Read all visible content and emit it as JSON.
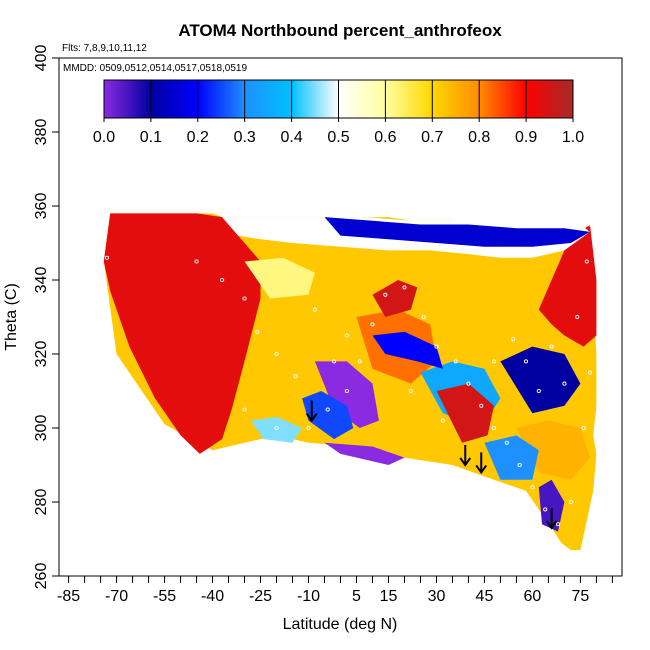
{
  "chart_data": {
    "type": "heatmap",
    "title": "ATOM4 Northbound percent_anthrofeox",
    "flights_label": "Flts: 7,8,9,10,11,12",
    "mmdd_label": "MMDD: 0509,0512,0514,0517,0518,0519",
    "xlabel": "Latitude (deg N)",
    "ylabel": "Theta (C)",
    "xlim": [
      -88,
      88
    ],
    "ylim": [
      260,
      400
    ],
    "x_ticks": [
      -85,
      -70,
      -55,
      -40,
      -25,
      -10,
      5,
      15,
      30,
      45,
      60,
      75
    ],
    "y_ticks": [
      260,
      280,
      300,
      320,
      340,
      360,
      380,
      400
    ],
    "colorbar": {
      "ticks": [
        "0.0",
        "0.1",
        "0.2",
        "0.3",
        "0.4",
        "0.5",
        "0.6",
        "0.7",
        "0.8",
        "0.9",
        "1.0"
      ],
      "range": [
        0,
        1
      ],
      "colors": [
        "#8a2be2",
        "#0000a0",
        "#0000ff",
        "#1e90ff",
        "#00bfff",
        "#ffffff",
        "#ffffa0",
        "#ffd700",
        "#ff8c00",
        "#ff0000",
        "#a52a2a"
      ]
    },
    "field_outline": {
      "lat": [
        -74,
        -72,
        -67,
        -60,
        -50,
        -45,
        -40,
        -37,
        -34,
        -27,
        -20,
        -13,
        -5,
        -2,
        3,
        8,
        15,
        22,
        28,
        35,
        40,
        46,
        50,
        56,
        60,
        63,
        66,
        70,
        75,
        78,
        80,
        80,
        79,
        80,
        79,
        77,
        75,
        72,
        69,
        66,
        58,
        48,
        35,
        20,
        5,
        -10,
        -20,
        -30,
        -40,
        -55,
        -70,
        -74
      ],
      "theta": [
        345,
        358,
        358,
        358,
        358,
        358,
        358,
        357,
        357,
        357,
        357,
        357,
        357,
        357,
        357,
        357,
        357,
        356,
        356,
        356,
        355,
        355,
        355,
        355,
        355,
        355,
        355,
        355,
        355,
        353,
        320,
        306,
        298,
        293,
        283,
        275,
        267,
        267,
        269,
        273,
        283,
        286,
        290,
        292,
        295,
        296,
        298,
        296,
        294,
        301,
        320,
        345
      ]
    },
    "regions": [
      {
        "value": 0.93,
        "lat": [
          -74,
          -72,
          -60,
          -45,
          -37,
          -32,
          -25,
          -25,
          -30,
          -34,
          -37,
          -44,
          -50,
          -58,
          -66,
          -72,
          -74
        ],
        "theta": [
          345,
          358,
          358,
          358,
          357,
          352,
          345,
          335,
          318,
          305,
          297,
          293,
          298,
          308,
          322,
          337,
          345
        ]
      },
      {
        "value": 0.93,
        "lat": [
          62,
          66,
          70,
          75,
          78,
          80,
          80,
          76,
          70,
          66,
          62
        ],
        "theta": [
          332,
          340,
          348,
          353,
          355,
          340,
          325,
          322,
          325,
          328,
          332
        ]
      },
      {
        "value": 0.5,
        "lat": [
          -37,
          -20,
          -5,
          8,
          22,
          35,
          45,
          56,
          66,
          75,
          78,
          70,
          60,
          50,
          40,
          28,
          15,
          0,
          -15,
          -25,
          -32,
          -37
        ],
        "theta": [
          357,
          357,
          357,
          357,
          356,
          356,
          355,
          355,
          355,
          355,
          353,
          348,
          346,
          346,
          347,
          348,
          348,
          349,
          350,
          351,
          352,
          357
        ]
      },
      {
        "value": 0.15,
        "lat": [
          -5,
          10,
          25,
          40,
          55,
          70,
          78,
          72,
          60,
          45,
          30,
          15,
          0,
          -5
        ],
        "theta": [
          357,
          356,
          355,
          355,
          354,
          354,
          353,
          350,
          349,
          349,
          350,
          351,
          352,
          357
        ]
      },
      {
        "value": 0.0,
        "lat": [
          -8,
          2,
          10,
          12,
          6,
          -2,
          -8
        ],
        "theta": [
          318,
          318,
          312,
          302,
          300,
          305,
          318
        ]
      },
      {
        "value": 0.25,
        "lat": [
          -12,
          -6,
          2,
          4,
          -2,
          -10,
          -12
        ],
        "theta": [
          308,
          310,
          306,
          300,
          297,
          302,
          308
        ]
      },
      {
        "value": 0.82,
        "lat": [
          5,
          18,
          28,
          30,
          22,
          10,
          5
        ],
        "theta": [
          330,
          332,
          328,
          318,
          312,
          316,
          330
        ]
      },
      {
        "value": 0.35,
        "lat": [
          25,
          35,
          45,
          50,
          44,
          32,
          25
        ],
        "theta": [
          315,
          318,
          316,
          308,
          300,
          304,
          315
        ]
      },
      {
        "value": 0.95,
        "lat": [
          30,
          40,
          48,
          46,
          38,
          30
        ],
        "theta": [
          310,
          312,
          306,
          298,
          296,
          310
        ]
      },
      {
        "value": 0.1,
        "lat": [
          50,
          60,
          70,
          75,
          70,
          60,
          50
        ],
        "theta": [
          318,
          322,
          320,
          312,
          306,
          304,
          318
        ]
      },
      {
        "value": 0.75,
        "lat": [
          55,
          65,
          75,
          78,
          72,
          62,
          55
        ],
        "theta": [
          300,
          302,
          300,
          292,
          286,
          288,
          300
        ]
      },
      {
        "value": 0.3,
        "lat": [
          45,
          55,
          62,
          60,
          50,
          45
        ],
        "theta": [
          296,
          298,
          294,
          286,
          286,
          296
        ]
      },
      {
        "value": 0.05,
        "lat": [
          62,
          66,
          70,
          68,
          63,
          62
        ],
        "theta": [
          284,
          286,
          280,
          272,
          274,
          284
        ]
      },
      {
        "value": 0.0,
        "lat": [
          -5,
          10,
          20,
          15,
          0,
          -5
        ],
        "theta": [
          296,
          295,
          292,
          290,
          293,
          296
        ]
      },
      {
        "value": 0.45,
        "lat": [
          -28,
          -20,
          -12,
          -15,
          -24,
          -28
        ],
        "theta": [
          302,
          303,
          300,
          296,
          297,
          302
        ]
      },
      {
        "value": 0.95,
        "lat": [
          10,
          18,
          24,
          22,
          14,
          10
        ],
        "theta": [
          336,
          340,
          338,
          332,
          330,
          336
        ]
      },
      {
        "value": 0.2,
        "lat": [
          10,
          20,
          30,
          32,
          24,
          14,
          10
        ],
        "theta": [
          325,
          326,
          322,
          316,
          318,
          320,
          325
        ]
      },
      {
        "value": 0.62,
        "lat": [
          -30,
          -18,
          -8,
          -10,
          -22,
          -30
        ],
        "theta": [
          345,
          346,
          342,
          336,
          335,
          345
        ]
      }
    ],
    "sample_points": [
      {
        "lat": -73,
        "theta": 346
      },
      {
        "lat": -45,
        "theta": 345
      },
      {
        "lat": -37,
        "theta": 340
      },
      {
        "lat": -30,
        "theta": 335
      },
      {
        "lat": -26,
        "theta": 326
      },
      {
        "lat": -20,
        "theta": 320
      },
      {
        "lat": -14,
        "theta": 314
      },
      {
        "lat": -30,
        "theta": 305
      },
      {
        "lat": -20,
        "theta": 300
      },
      {
        "lat": -10,
        "theta": 300
      },
      {
        "lat": -4,
        "theta": 305
      },
      {
        "lat": 2,
        "theta": 310
      },
      {
        "lat": 6,
        "theta": 318
      },
      {
        "lat": 10,
        "theta": 328
      },
      {
        "lat": 14,
        "theta": 336
      },
      {
        "lat": 20,
        "theta": 338
      },
      {
        "lat": 26,
        "theta": 330
      },
      {
        "lat": 30,
        "theta": 322
      },
      {
        "lat": 36,
        "theta": 318
      },
      {
        "lat": 40,
        "theta": 312
      },
      {
        "lat": 44,
        "theta": 306
      },
      {
        "lat": 48,
        "theta": 300
      },
      {
        "lat": 52,
        "theta": 296
      },
      {
        "lat": 56,
        "theta": 290
      },
      {
        "lat": 60,
        "theta": 284
      },
      {
        "lat": 64,
        "theta": 278
      },
      {
        "lat": 68,
        "theta": 274
      },
      {
        "lat": 72,
        "theta": 280
      },
      {
        "lat": 76,
        "theta": 300
      },
      {
        "lat": 78,
        "theta": 315
      },
      {
        "lat": 74,
        "theta": 330
      },
      {
        "lat": 77,
        "theta": 345
      },
      {
        "lat": 78,
        "theta": 355
      },
      {
        "lat": 62,
        "theta": 310
      },
      {
        "lat": 58,
        "theta": 318
      },
      {
        "lat": 66,
        "theta": 322
      },
      {
        "lat": 70,
        "theta": 312
      },
      {
        "lat": 54,
        "theta": 324
      },
      {
        "lat": 48,
        "theta": 318
      },
      {
        "lat": 2,
        "theta": 325
      },
      {
        "lat": -2,
        "theta": 318
      },
      {
        "lat": -8,
        "theta": 332
      },
      {
        "lat": 32,
        "theta": 302
      },
      {
        "lat": 22,
        "theta": 310
      }
    ],
    "arrow_markers": [
      {
        "lat": -9,
        "theta": 302
      },
      {
        "lat": 39,
        "theta": 290
      },
      {
        "lat": 44,
        "theta": 288
      },
      {
        "lat": 66,
        "theta": 273
      }
    ]
  }
}
